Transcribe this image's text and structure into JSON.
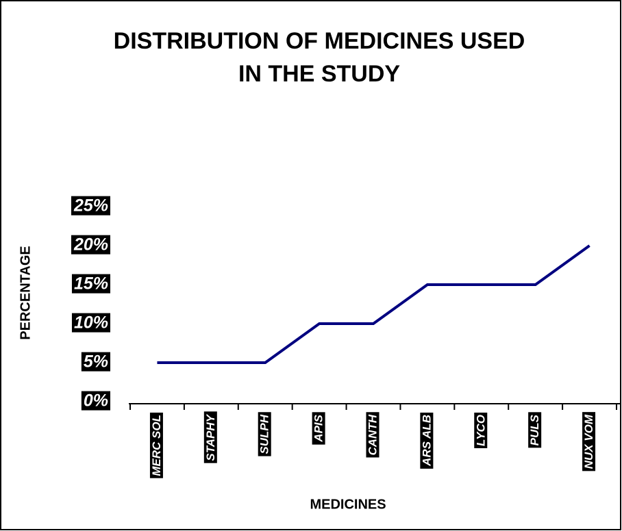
{
  "chart_data": {
    "type": "line",
    "title": [
      "DISTRIBUTION OF MEDICINES USED",
      "IN THE STUDY"
    ],
    "x_label": "MEDICINES",
    "y_label": "PERCENTAGE",
    "categories": [
      "MERC SOL",
      "STAPHY",
      "SULPH",
      "APIS",
      "CANTH",
      "ARS ALB",
      "LYCO",
      "PULS",
      "NUX VOM"
    ],
    "series": [
      {
        "name": "Percentage",
        "color": "#000080",
        "values": [
          5,
          5,
          5,
          10,
          10,
          15,
          15,
          15,
          20
        ]
      }
    ],
    "ylim": [
      0,
      25
    ],
    "yticks": [
      {
        "value": 0,
        "label": "0%"
      },
      {
        "value": 5,
        "label": "5%"
      },
      {
        "value": 10,
        "label": "10%"
      },
      {
        "value": 15,
        "label": "15%"
      },
      {
        "value": 20,
        "label": "20%"
      },
      {
        "value": 25,
        "label": "25%"
      }
    ],
    "grid": false
  }
}
